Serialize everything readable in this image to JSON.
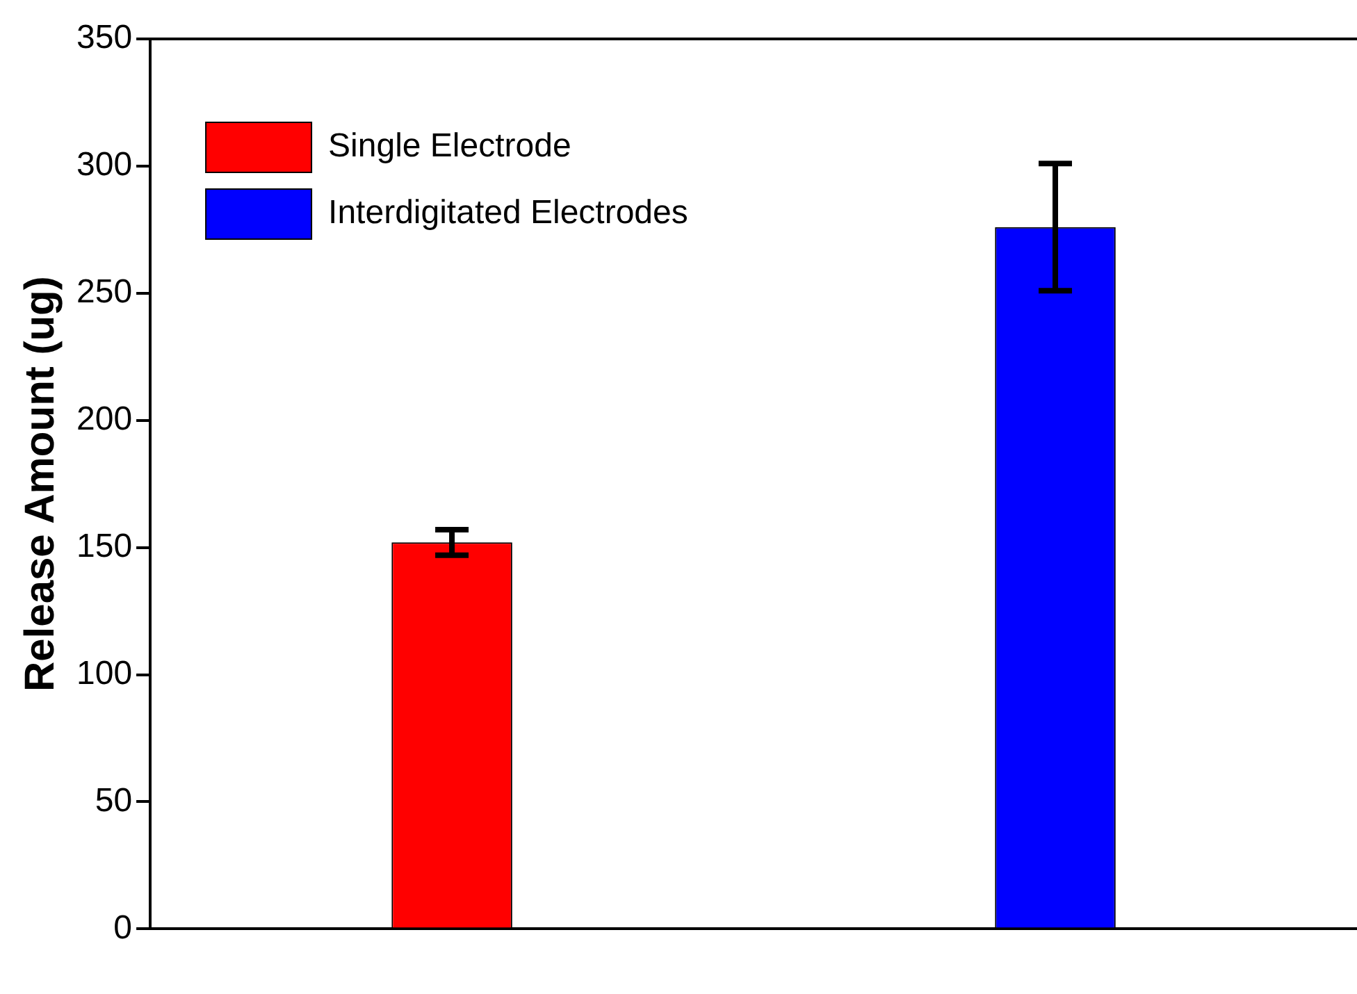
{
  "chart_data": {
    "type": "bar",
    "ylabel": "Release Amount (ug)",
    "categories": [
      null,
      null
    ],
    "series": [
      {
        "name": "Single Electrode",
        "color": "#ff0000",
        "values": [
          152,
          null
        ],
        "errors": [
          5,
          null
        ]
      },
      {
        "name": "Interdigitated Electrodes",
        "color": "#0000ff",
        "values": [
          null,
          276
        ],
        "errors": [
          null,
          25
        ]
      }
    ],
    "ylim": [
      0,
      350
    ],
    "yticks": [
      0,
      50,
      100,
      150,
      200,
      250,
      300,
      350
    ],
    "grid": false,
    "legend": "top left"
  }
}
